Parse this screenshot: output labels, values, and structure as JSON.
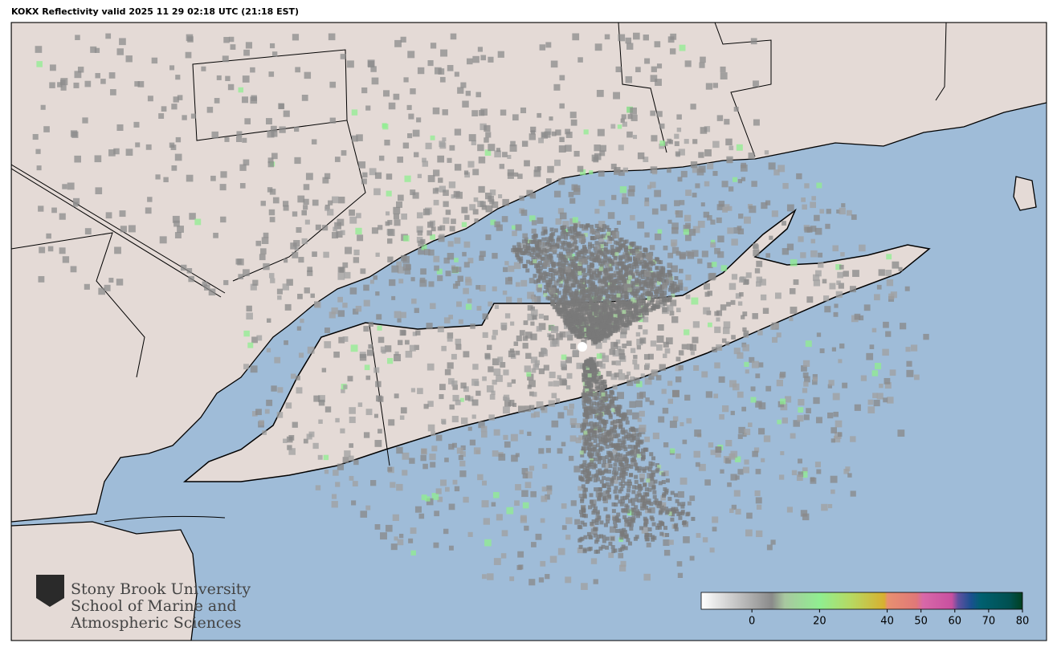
{
  "header": {
    "title": "KOKX Reflectivity valid 2025 11 29 02:18 UTC (21:18 EST)"
  },
  "logo": {
    "lines": [
      "Stony Brook University",
      "School of Marine and",
      "Atmospheric Sciences"
    ]
  },
  "map": {
    "colorbar": {
      "lim": [
        -15,
        80
      ],
      "ticks": [
        0,
        20,
        40,
        50,
        60,
        70,
        80
      ]
    }
  }
}
